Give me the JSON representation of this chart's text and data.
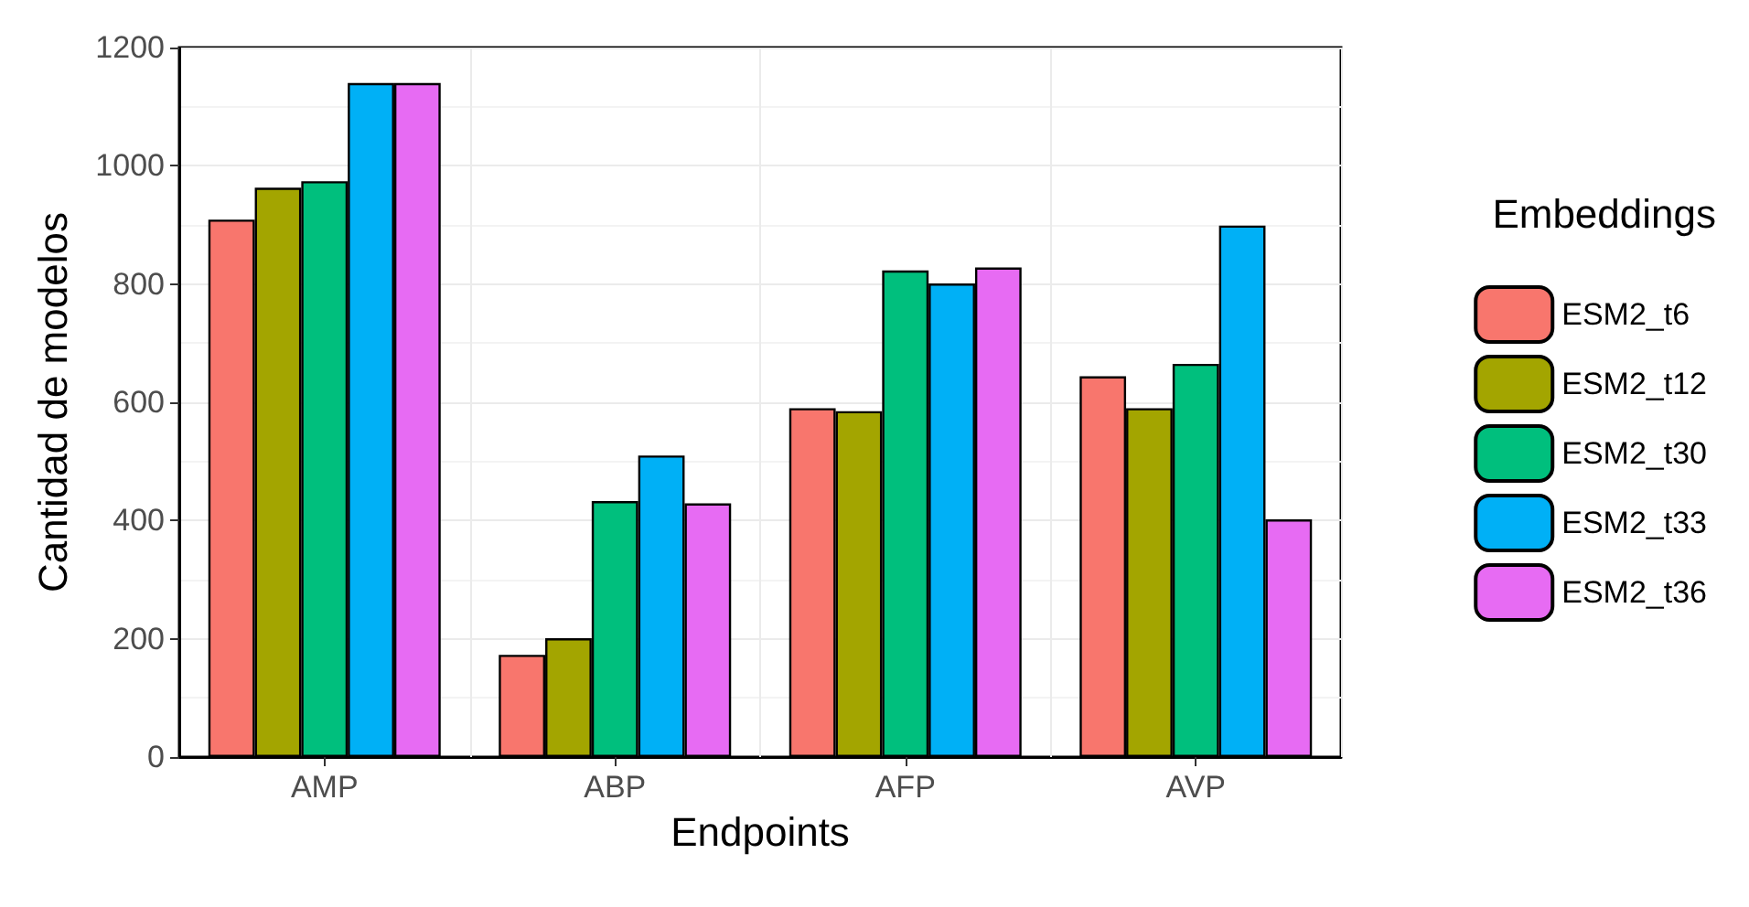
{
  "chart_data": {
    "type": "bar",
    "xlabel": "Endpoints",
    "ylabel": "Cantidad de modelos",
    "legend_title": "Embeddings",
    "categories": [
      "AMP",
      "ABP",
      "AFP",
      "AVP"
    ],
    "series": [
      {
        "name": "ESM2_t6",
        "color": "#f8766d",
        "values": [
          909,
          173,
          590,
          644
        ]
      },
      {
        "name": "ESM2_t12",
        "color": "#a3a500",
        "values": [
          963,
          201,
          585,
          590
        ]
      },
      {
        "name": "ESM2_t30",
        "color": "#00bf7d",
        "values": [
          974,
          433,
          823,
          665
        ]
      },
      {
        "name": "ESM2_t33",
        "color": "#00b0f6",
        "values": [
          1140,
          510,
          801,
          899
        ]
      },
      {
        "name": "ESM2_t36",
        "color": "#e76bf3",
        "values": [
          1140,
          429,
          828,
          402
        ]
      }
    ],
    "ylim": [
      0,
      1200
    ],
    "yticks": [
      0,
      200,
      400,
      600,
      800,
      1000,
      1200
    ],
    "grid": true,
    "legend": "right"
  }
}
